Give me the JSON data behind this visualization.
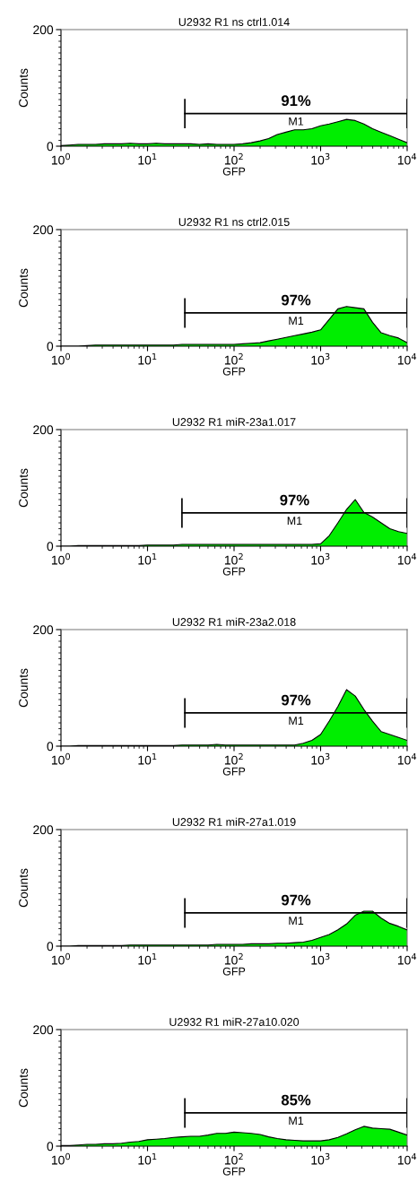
{
  "chart_data": [
    {
      "type": "area",
      "title": "U2932 R1 ns ctrl1.014",
      "xlabel": "GFP",
      "ylabel": "Counts",
      "log": "x",
      "color": "#00ee00",
      "xlim": [
        1,
        10000
      ],
      "ylim": [
        0,
        200
      ],
      "xticks": [
        {
          "value": 1,
          "label": "10$^{0}$"
        },
        {
          "value": 10,
          "label": "10$^{1}$"
        },
        {
          "value": 100,
          "label": "10$^{2}$"
        },
        {
          "value": 1000,
          "label": "10$^{3}$"
        },
        {
          "value": 10000,
          "label": "10$^{4}$"
        }
      ],
      "yticks": [
        0,
        200
      ],
      "ref_lines": [
        {
          "axis": "x",
          "value": 27
        },
        {
          "axis": "x",
          "value": 10000
        },
        {
          "axis": "y",
          "value": 56
        }
      ],
      "annotations": [
        "91%",
        "M1"
      ],
      "x": [
        1,
        1.26,
        1.58,
        2,
        2.51,
        3.16,
        3.98,
        5.01,
        6.31,
        7.94,
        10,
        12.6,
        15.8,
        20,
        25.1,
        31.6,
        39.8,
        50.1,
        63.1,
        79.4,
        100,
        126,
        158,
        200,
        251,
        316,
        398,
        501,
        631,
        794,
        1000,
        1259,
        1585,
        1995,
        2512,
        3162,
        3981,
        5012,
        6310,
        7943,
        10000
      ],
      "values": [
        1,
        2,
        3,
        3,
        3,
        4,
        4,
        4,
        5,
        4,
        4,
        5,
        4,
        4,
        4,
        4,
        3,
        4,
        3,
        3,
        3,
        4,
        6,
        9,
        13,
        20,
        24,
        28,
        28,
        30,
        35,
        38,
        42,
        46,
        44,
        38,
        30,
        24,
        18,
        12,
        6
      ]
    },
    {
      "type": "area",
      "title": "U2932 R1 ns ctrl2.015",
      "xlabel": "GFP",
      "ylabel": "Counts",
      "log": "x",
      "color": "#00ee00",
      "xlim": [
        1,
        10000
      ],
      "ylim": [
        0,
        200
      ],
      "xticks": [
        {
          "value": 1,
          "label": "10$^{0}$"
        },
        {
          "value": 10,
          "label": "10$^{1}$"
        },
        {
          "value": 100,
          "label": "10$^{2}$"
        },
        {
          "value": 1000,
          "label": "10$^{3}$"
        },
        {
          "value": 10000,
          "label": "10$^{4}$"
        }
      ],
      "yticks": [
        0,
        200
      ],
      "ref_lines": [
        {
          "axis": "x",
          "value": 27
        },
        {
          "axis": "x",
          "value": 10000
        },
        {
          "axis": "y",
          "value": 57
        }
      ],
      "annotations": [
        "97%",
        "M1"
      ],
      "x": [
        1,
        1.26,
        1.58,
        2,
        2.51,
        3.16,
        3.98,
        5.01,
        6.31,
        7.94,
        10,
        12.6,
        15.8,
        20,
        25.1,
        31.6,
        39.8,
        50.1,
        63.1,
        79.4,
        100,
        126,
        158,
        200,
        251,
        316,
        398,
        501,
        631,
        794,
        1000,
        1259,
        1585,
        1995,
        2512,
        3162,
        3981,
        5012,
        6310,
        7943,
        10000
      ],
      "values": [
        0,
        0,
        0,
        1,
        2,
        2,
        2,
        2,
        2,
        2,
        2,
        2,
        2,
        2,
        3,
        3,
        3,
        3,
        3,
        3,
        3,
        4,
        5,
        6,
        9,
        12,
        15,
        18,
        21,
        24,
        28,
        46,
        64,
        68,
        66,
        64,
        41,
        23,
        18,
        14,
        6
      ]
    },
    {
      "type": "area",
      "title": "U2932 R1 miR-23a1.017",
      "xlabel": "GFP",
      "ylabel": "Counts",
      "log": "x",
      "color": "#00ee00",
      "xlim": [
        1,
        10000
      ],
      "ylim": [
        0,
        200
      ],
      "xticks": [
        {
          "value": 1,
          "label": "10$^{0}$"
        },
        {
          "value": 10,
          "label": "10$^{1}$"
        },
        {
          "value": 100,
          "label": "10$^{2}$"
        },
        {
          "value": 1000,
          "label": "10$^{3}$"
        },
        {
          "value": 10000,
          "label": "10$^{4}$"
        }
      ],
      "yticks": [
        0,
        200
      ],
      "ref_lines": [
        {
          "axis": "x",
          "value": 25
        },
        {
          "axis": "x",
          "value": 10000
        },
        {
          "axis": "y",
          "value": 57
        }
      ],
      "annotations": [
        "97%",
        "M1"
      ],
      "x": [
        1,
        1.26,
        1.58,
        2,
        2.51,
        3.16,
        3.98,
        5.01,
        6.31,
        7.94,
        10,
        12.6,
        15.8,
        20,
        25.1,
        31.6,
        39.8,
        50.1,
        63.1,
        79.4,
        100,
        126,
        158,
        200,
        251,
        316,
        398,
        501,
        631,
        794,
        1000,
        1259,
        1585,
        1995,
        2512,
        3162,
        3981,
        5012,
        6310,
        7943,
        10000
      ],
      "values": [
        0,
        0,
        1,
        1,
        1,
        1,
        1,
        1,
        1,
        1,
        2,
        2,
        2,
        2,
        3,
        3,
        3,
        3,
        3,
        3,
        3,
        3,
        3,
        3,
        3,
        3,
        3,
        3,
        3,
        3,
        4,
        18,
        40,
        63,
        80,
        58,
        50,
        40,
        30,
        25,
        22
      ]
    },
    {
      "type": "area",
      "title": "U2932 R1 miR-23a2.018",
      "xlabel": "GFP",
      "ylabel": "Counts",
      "log": "x",
      "color": "#00ee00",
      "xlim": [
        1,
        10000
      ],
      "ylim": [
        0,
        200
      ],
      "xticks": [
        {
          "value": 1,
          "label": "10$^{0}$"
        },
        {
          "value": 10,
          "label": "10$^{1}$"
        },
        {
          "value": 100,
          "label": "10$^{2}$"
        },
        {
          "value": 1000,
          "label": "10$^{3}$"
        },
        {
          "value": 10000,
          "label": "10$^{4}$"
        }
      ],
      "yticks": [
        0,
        200
      ],
      "ref_lines": [
        {
          "axis": "x",
          "value": 27
        },
        {
          "axis": "x",
          "value": 10000
        },
        {
          "axis": "y",
          "value": 57
        }
      ],
      "annotations": [
        "97%",
        "M1"
      ],
      "x": [
        1,
        1.26,
        1.58,
        2,
        2.51,
        3.16,
        3.98,
        5.01,
        6.31,
        7.94,
        10,
        12.6,
        15.8,
        20,
        25.1,
        31.6,
        39.8,
        50.1,
        63.1,
        79.4,
        100,
        126,
        158,
        200,
        251,
        316,
        398,
        501,
        631,
        794,
        1000,
        1259,
        1585,
        1995,
        2512,
        3162,
        3981,
        5012,
        6310,
        7943,
        10000
      ],
      "values": [
        0,
        0,
        1,
        1,
        1,
        1,
        1,
        1,
        1,
        1,
        1,
        1,
        1,
        1,
        2,
        2,
        2,
        2,
        3,
        2,
        2,
        2,
        2,
        2,
        2,
        2,
        2,
        2,
        5,
        10,
        20,
        43,
        68,
        97,
        86,
        63,
        43,
        25,
        20,
        15,
        10
      ]
    },
    {
      "type": "area",
      "title": "U2932 R1 miR-27a1.019",
      "xlabel": "GFP",
      "ylabel": "Counts",
      "log": "x",
      "color": "#00ee00",
      "xlim": [
        1,
        10000
      ],
      "ylim": [
        0,
        200
      ],
      "xticks": [
        {
          "value": 1,
          "label": "10$^{0}$"
        },
        {
          "value": 10,
          "label": "10$^{1}$"
        },
        {
          "value": 100,
          "label": "10$^{2}$"
        },
        {
          "value": 1000,
          "label": "10$^{3}$"
        },
        {
          "value": 10000,
          "label": "10$^{4}$"
        }
      ],
      "yticks": [
        0,
        200
      ],
      "ref_lines": [
        {
          "axis": "x",
          "value": 27
        },
        {
          "axis": "x",
          "value": 10000
        },
        {
          "axis": "y",
          "value": 57
        }
      ],
      "annotations": [
        "97%",
        "M1"
      ],
      "x": [
        1,
        1.26,
        1.58,
        2,
        2.51,
        3.16,
        3.98,
        5.01,
        6.31,
        7.94,
        10,
        12.6,
        15.8,
        20,
        25.1,
        31.6,
        39.8,
        50.1,
        63.1,
        79.4,
        100,
        126,
        158,
        200,
        251,
        316,
        398,
        501,
        631,
        794,
        1000,
        1259,
        1585,
        1995,
        2512,
        3162,
        3981,
        5012,
        6310,
        7943,
        10000
      ],
      "values": [
        0,
        0,
        1,
        1,
        1,
        1,
        1,
        1,
        2,
        2,
        2,
        2,
        2,
        2,
        2,
        2,
        2,
        2,
        3,
        3,
        3,
        3,
        4,
        4,
        4,
        5,
        5,
        6,
        7,
        10,
        15,
        20,
        28,
        38,
        53,
        60,
        60,
        48,
        39,
        34,
        28
      ]
    },
    {
      "type": "area",
      "title": "U2932 R1 miR-27a10.020",
      "xlabel": "GFP",
      "ylabel": "Counts",
      "log": "x",
      "color": "#00ee00",
      "xlim": [
        1,
        10000
      ],
      "ylim": [
        0,
        200
      ],
      "xticks": [
        {
          "value": 1,
          "label": "10$^{0}$"
        },
        {
          "value": 10,
          "label": "10$^{1}$"
        },
        {
          "value": 100,
          "label": "10$^{2}$"
        },
        {
          "value": 1000,
          "label": "10$^{3}$"
        },
        {
          "value": 10000,
          "label": "10$^{4}$"
        }
      ],
      "yticks": [
        0,
        200
      ],
      "ref_lines": [
        {
          "axis": "x",
          "value": 27
        },
        {
          "axis": "x",
          "value": 10000
        },
        {
          "axis": "y",
          "value": 57
        }
      ],
      "annotations": [
        "85%",
        "M1"
      ],
      "x": [
        1,
        1.26,
        1.58,
        2,
        2.51,
        3.16,
        3.98,
        5.01,
        6.31,
        7.94,
        10,
        12.6,
        15.8,
        20,
        25.1,
        31.6,
        39.8,
        50.1,
        63.1,
        79.4,
        100,
        126,
        158,
        200,
        251,
        316,
        398,
        501,
        631,
        794,
        1000,
        1259,
        1585,
        1995,
        2512,
        3162,
        3981,
        5012,
        6310,
        7943,
        10000
      ],
      "values": [
        1,
        1,
        2,
        3,
        3,
        4,
        4,
        5,
        7,
        8,
        11,
        12,
        13,
        15,
        16,
        17,
        17,
        19,
        22,
        22,
        24,
        23,
        22,
        20,
        16,
        13,
        11,
        10,
        9,
        9,
        9,
        11,
        15,
        21,
        28,
        34,
        31,
        30,
        29,
        24,
        19
      ]
    }
  ]
}
